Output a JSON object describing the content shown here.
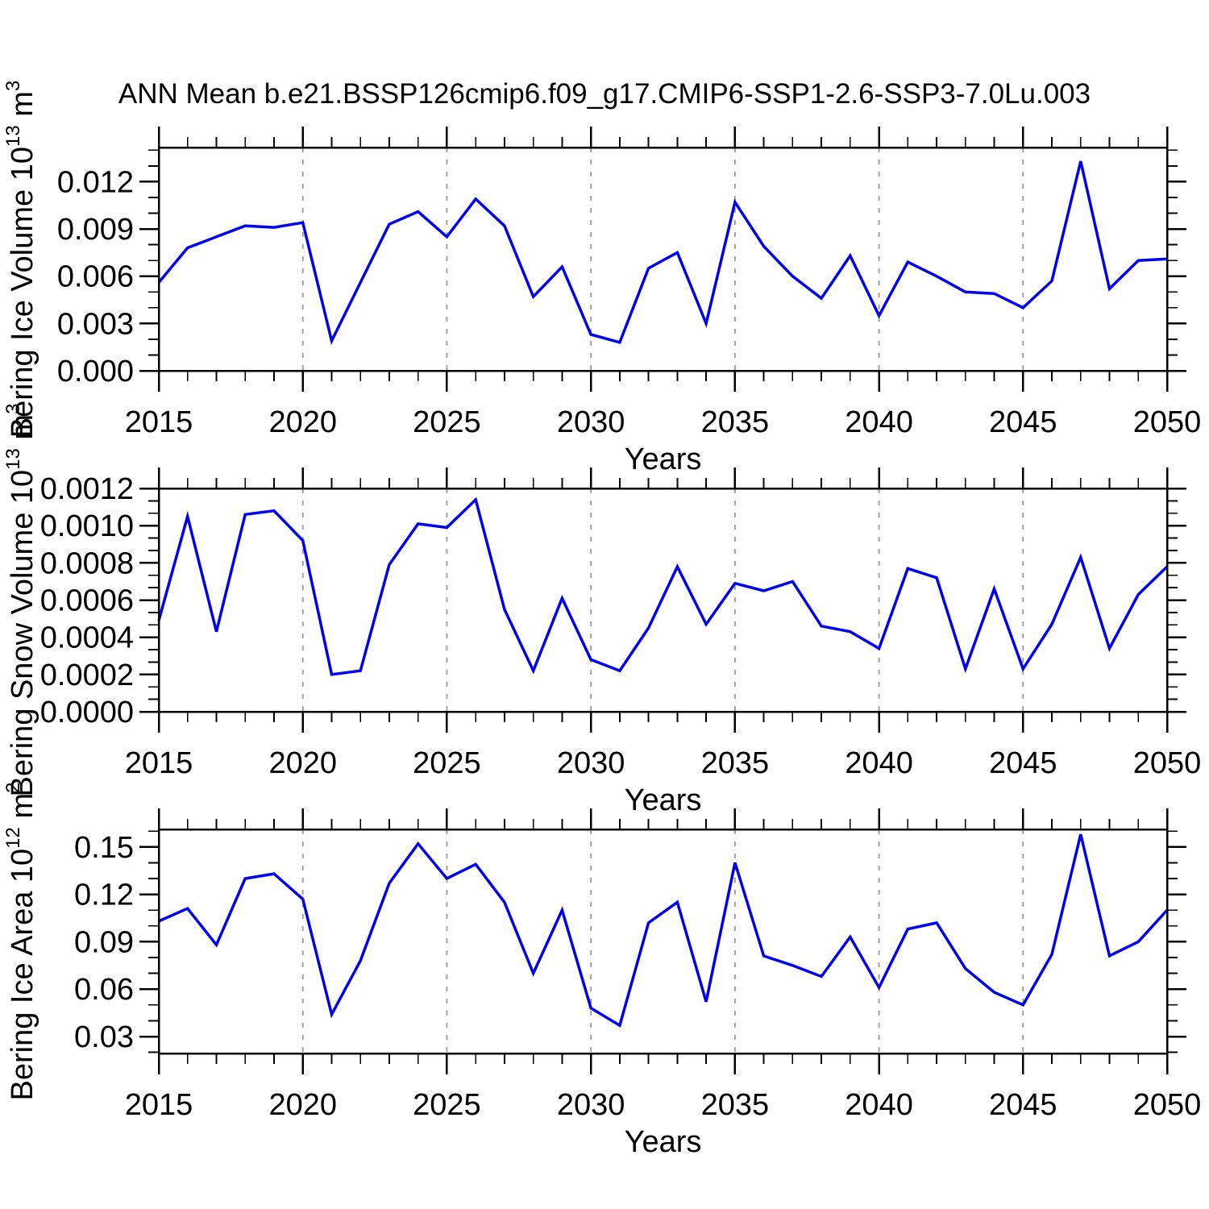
{
  "title": "ANN Mean b.e21.BSSP126cmip6.f09_g17.CMIP6-SSP1-2.6-SSP3-7.0Lu.003",
  "figure": {
    "background": "#ffffff",
    "line_color": "#0000ee",
    "grid_color": "#999999",
    "frame_color": "#000000"
  },
  "chart_data": [
    {
      "type": "line",
      "name": "bering-ice-volume",
      "xlabel": "Years",
      "ylabel": "Bering Ice Volume 10^13 m^3",
      "ylabel_parts": {
        "base": "Bering Ice Volume 10",
        "power": "13",
        "unit": " m",
        "unit_power": "3"
      },
      "x": [
        2015,
        2016,
        2017,
        2018,
        2019,
        2020,
        2021,
        2022,
        2023,
        2024,
        2025,
        2026,
        2027,
        2028,
        2029,
        2030,
        2031,
        2032,
        2033,
        2034,
        2035,
        2036,
        2037,
        2038,
        2039,
        2040,
        2041,
        2042,
        2043,
        2044,
        2045,
        2046,
        2047,
        2048,
        2049,
        2050
      ],
      "values": [
        0.0056,
        0.0078,
        0.0085,
        0.0092,
        0.0091,
        0.0094,
        0.0019,
        0.0056,
        0.0093,
        0.0101,
        0.0085,
        0.0109,
        0.0092,
        0.0047,
        0.0066,
        0.0023,
        0.0018,
        0.0065,
        0.0075,
        0.003,
        0.0107,
        0.0079,
        0.006,
        0.0046,
        0.0073,
        0.0035,
        0.0069,
        0.006,
        0.005,
        0.0049,
        0.004,
        0.0057,
        0.0133,
        0.0052,
        0.007,
        0.0071
      ],
      "xlim": [
        2015,
        2050
      ],
      "ylim": [
        0,
        0.01417
      ],
      "yticks": [
        {
          "v": 0.0,
          "label": "0.000"
        },
        {
          "v": 0.003,
          "label": "0.003"
        },
        {
          "v": 0.006,
          "label": "0.006"
        },
        {
          "v": 0.009,
          "label": "0.009"
        },
        {
          "v": 0.012,
          "label": "0.012"
        }
      ],
      "yminor_step": 0.001,
      "xticks": [
        {
          "v": 2015,
          "label": "2015"
        },
        {
          "v": 2020,
          "label": "2020"
        },
        {
          "v": 2025,
          "label": "2025"
        },
        {
          "v": 2030,
          "label": "2030"
        },
        {
          "v": 2035,
          "label": "2035"
        },
        {
          "v": 2040,
          "label": "2040"
        },
        {
          "v": 2045,
          "label": "2045"
        },
        {
          "v": 2050,
          "label": "2050"
        }
      ],
      "xminor_step": 1,
      "grid_years": [
        2020,
        2025,
        2030,
        2035,
        2040,
        2045
      ],
      "grid_style": "dashed-vertical"
    },
    {
      "type": "line",
      "name": "bering-snow-volume",
      "xlabel": "Years",
      "ylabel": "Bering Snow Volume 10^13 m^3",
      "ylabel_parts": {
        "base": "Bering Snow Volume 10",
        "power": "13",
        "unit": " m",
        "unit_power": "3"
      },
      "x": [
        2015,
        2016,
        2017,
        2018,
        2019,
        2020,
        2021,
        2022,
        2023,
        2024,
        2025,
        2026,
        2027,
        2028,
        2029,
        2030,
        2031,
        2032,
        2033,
        2034,
        2035,
        2036,
        2037,
        2038,
        2039,
        2040,
        2041,
        2042,
        2043,
        2044,
        2045,
        2046,
        2047,
        2048,
        2049,
        2050
      ],
      "values": [
        0.00049,
        0.00105,
        0.00043,
        0.00106,
        0.00108,
        0.00092,
        0.0002,
        0.00022,
        0.00079,
        0.00101,
        0.00099,
        0.00114,
        0.00055,
        0.00022,
        0.00061,
        0.00028,
        0.00022,
        0.00045,
        0.00078,
        0.00047,
        0.00069,
        0.00065,
        0.0007,
        0.00046,
        0.00043,
        0.00034,
        0.00077,
        0.00072,
        0.00023,
        0.00066,
        0.00023,
        0.00047,
        0.00083,
        0.00034,
        0.00063,
        0.00078
      ],
      "xlim": [
        2015,
        2050
      ],
      "ylim": [
        0,
        0.0012
      ],
      "yticks": [
        {
          "v": 0.0,
          "label": "0.0000"
        },
        {
          "v": 0.0002,
          "label": "0.0002"
        },
        {
          "v": 0.0004,
          "label": "0.0004"
        },
        {
          "v": 0.0006,
          "label": "0.0006"
        },
        {
          "v": 0.0008,
          "label": "0.0008"
        },
        {
          "v": 0.001,
          "label": "0.0010"
        },
        {
          "v": 0.0012,
          "label": "0.0012"
        }
      ],
      "yminor_step": 6.66667e-05,
      "xticks": [
        {
          "v": 2015,
          "label": "2015"
        },
        {
          "v": 2020,
          "label": "2020"
        },
        {
          "v": 2025,
          "label": "2025"
        },
        {
          "v": 2030,
          "label": "2030"
        },
        {
          "v": 2035,
          "label": "2035"
        },
        {
          "v": 2040,
          "label": "2040"
        },
        {
          "v": 2045,
          "label": "2045"
        },
        {
          "v": 2050,
          "label": "2050"
        }
      ],
      "xminor_step": 1,
      "grid_years": [
        2020,
        2025,
        2030,
        2035,
        2040,
        2045
      ],
      "grid_style": "dashed-vertical"
    },
    {
      "type": "line",
      "name": "bering-ice-area",
      "xlabel": "Years",
      "ylabel": "Bering Ice Area 10^12 m^2",
      "ylabel_parts": {
        "base": "Bering Ice Area 10",
        "power": "12",
        "unit": " m",
        "unit_power": "2"
      },
      "x": [
        2015,
        2016,
        2017,
        2018,
        2019,
        2020,
        2021,
        2022,
        2023,
        2024,
        2025,
        2026,
        2027,
        2028,
        2029,
        2030,
        2031,
        2032,
        2033,
        2034,
        2035,
        2036,
        2037,
        2038,
        2039,
        2040,
        2041,
        2042,
        2043,
        2044,
        2045,
        2046,
        2047,
        2048,
        2049,
        2050
      ],
      "values": [
        0.103,
        0.111,
        0.088,
        0.13,
        0.133,
        0.117,
        0.044,
        0.078,
        0.127,
        0.152,
        0.13,
        0.139,
        0.115,
        0.07,
        0.11,
        0.048,
        0.037,
        0.102,
        0.115,
        0.052,
        0.14,
        0.081,
        0.075,
        0.068,
        0.093,
        0.061,
        0.098,
        0.102,
        0.073,
        0.058,
        0.05,
        0.082,
        0.158,
        0.081,
        0.09,
        0.11
      ],
      "xlim": [
        2015,
        2050
      ],
      "ylim": [
        0.0193,
        0.1611
      ],
      "yticks": [
        {
          "v": 0.03,
          "label": "0.03"
        },
        {
          "v": 0.06,
          "label": "0.06"
        },
        {
          "v": 0.09,
          "label": "0.09"
        },
        {
          "v": 0.12,
          "label": "0.12"
        },
        {
          "v": 0.15,
          "label": "0.15"
        }
      ],
      "yminor_step": 0.01,
      "xticks": [
        {
          "v": 2015,
          "label": "2015"
        },
        {
          "v": 2020,
          "label": "2020"
        },
        {
          "v": 2025,
          "label": "2025"
        },
        {
          "v": 2030,
          "label": "2030"
        },
        {
          "v": 2035,
          "label": "2035"
        },
        {
          "v": 2040,
          "label": "2040"
        },
        {
          "v": 2045,
          "label": "2045"
        },
        {
          "v": 2050,
          "label": "2050"
        }
      ],
      "xminor_step": 1,
      "grid_years": [
        2020,
        2025,
        2030,
        2035,
        2040,
        2045
      ],
      "grid_style": "dashed-vertical"
    }
  ]
}
